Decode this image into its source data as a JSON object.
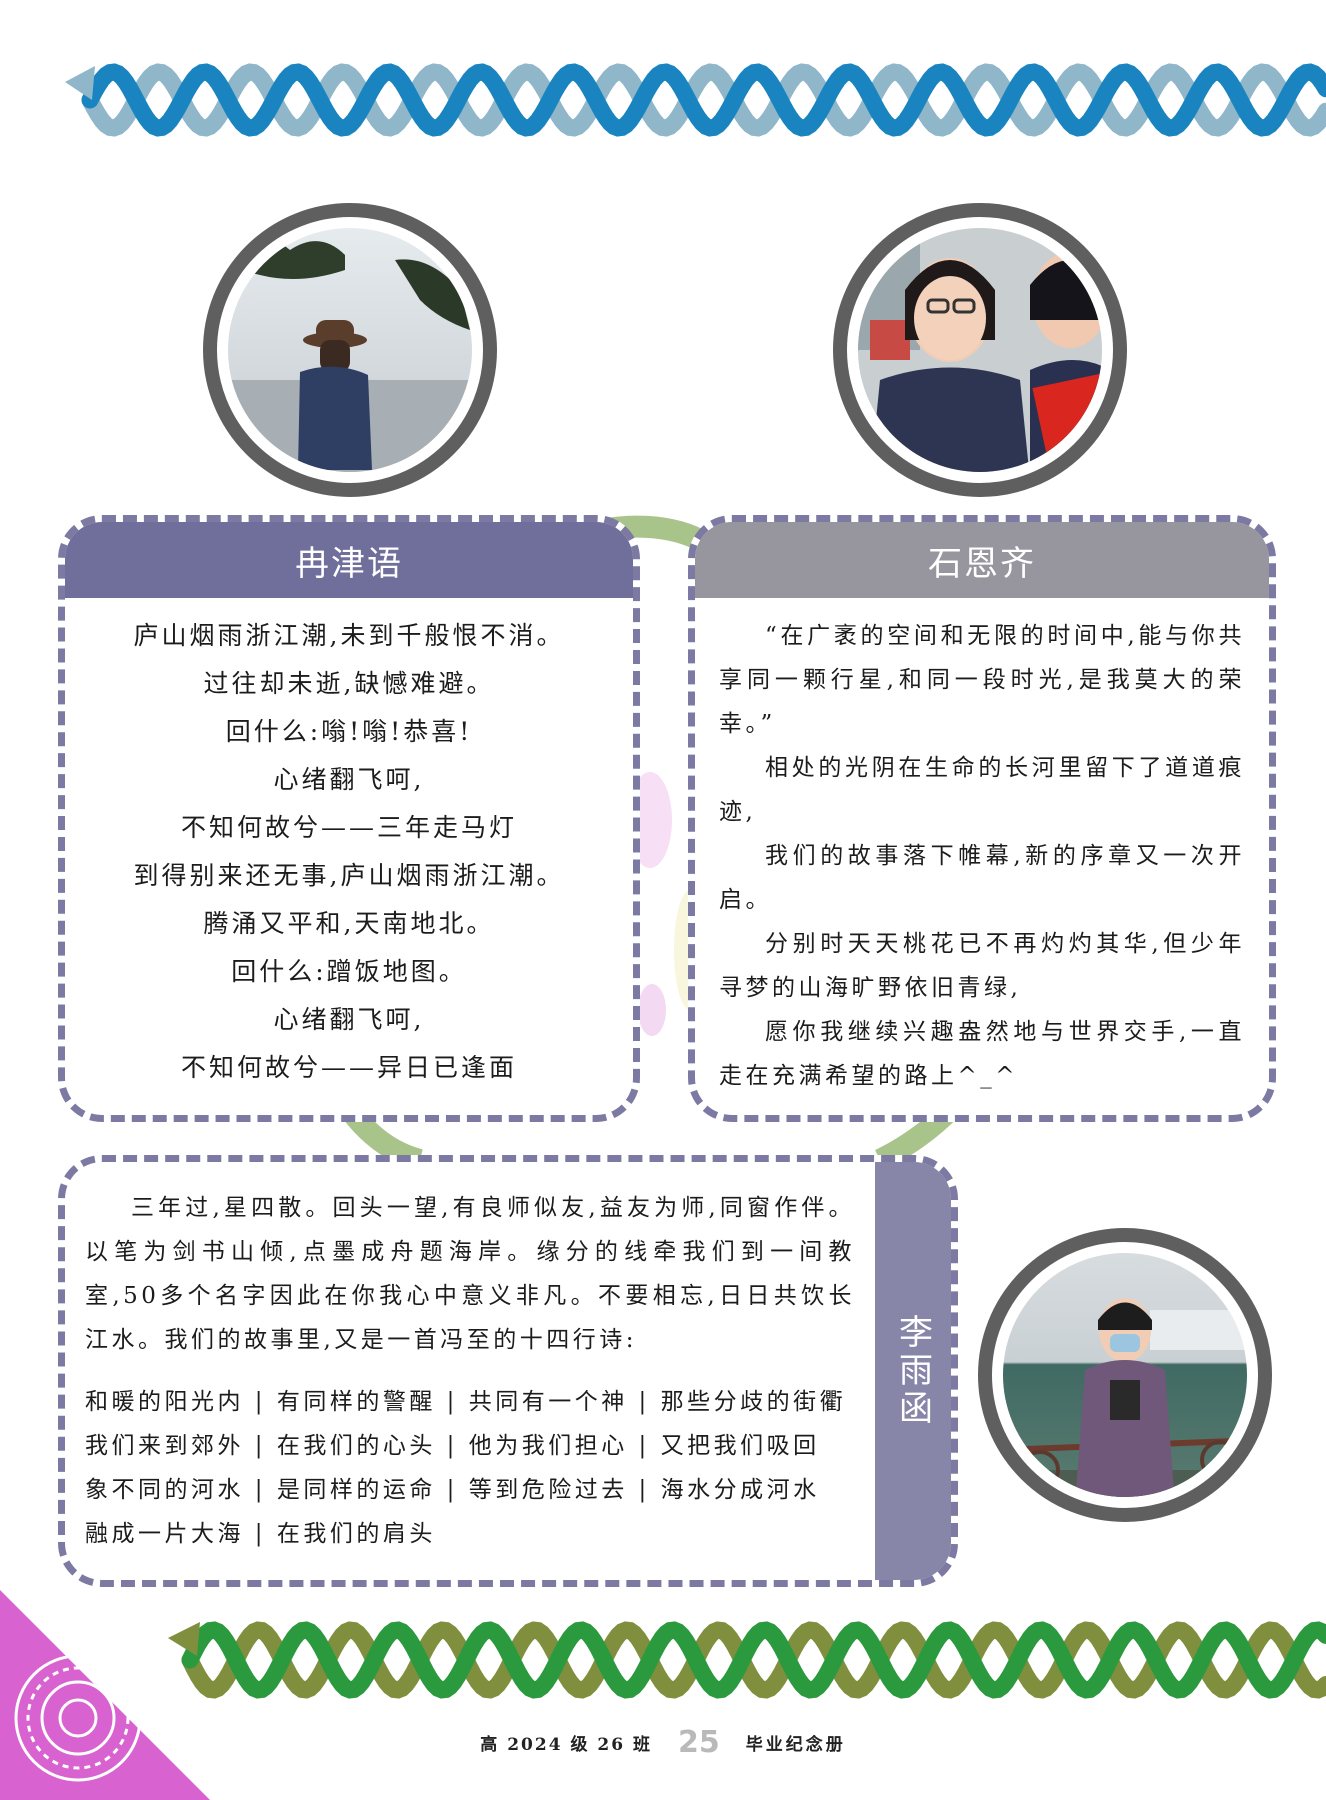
{
  "profiles": [
    {
      "name": "冉津语",
      "photo": "photo-man-with-hat-at-seaside",
      "poem_lines": [
        "庐山烟雨浙江潮,未到千般恨不消。",
        "过往却未逝,缺憾难避。",
        "回什么:嗡!嗡!恭喜!",
        "心绪翻飞呵,",
        "不知何故兮——三年走马灯",
        "到得别来还无事,庐山烟雨浙江潮。",
        "腾涌又平和,天南地北。",
        "回什么:蹭饭地图。",
        "心绪翻飞呵,",
        "不知何故兮——异日已逢面"
      ]
    },
    {
      "name": "石恩齐",
      "photo": "photo-two-smiling-students",
      "paragraphs": [
        "“在广袤的空间和无限的时间中,能与你共享同一颗行星,和同一段时光,是我莫大的荣幸。”",
        "相处的光阴在生命的长河里留下了道道痕迹,",
        "我们的故事落下帷幕,新的序章又一次开启。",
        "分别时天天桃花已不再灼灼其华,但少年寻梦的山海旷野依旧青绿,",
        "愿你我继续兴趣盎然地与世界交手,一直走在充满希望的路上^_^"
      ]
    },
    {
      "name": "李雨函",
      "photo": "photo-person-with-mask-at-riverside",
      "intro": "三年过,星四散。回头一望,有良师似友,益友为师,同窗作伴。以笔为剑书山倾,点墨成舟题海岸。缘分的线牵我们到一间教室,50多个名字因此在你我心中意义非凡。不要相忘,日日共饮长江水。我们的故事里,又是一首冯至的十四行诗:",
      "sonnet_lines": [
        "和暖的阳光内 | 有同样的警醒 | 共同有一个神 | 那些分歧的街衢",
        "我们来到郊外 | 在我们的心头 | 他为我们担心 | 又把我们吸回",
        "象不同的河水 | 是同样的运命 | 等到危险过去 | 海水分成河水",
        "融成一片大海 | 在我们的肩头"
      ]
    }
  ],
  "footer": {
    "class_label": "高 2024 级 26 班",
    "page_number": "25",
    "book_label": "毕业纪念册"
  },
  "colors": {
    "card_border": "#7c7aa2",
    "card_header": "#706e9b",
    "helix_top_dark": "#1a84c0",
    "helix_top_light": "#8fb6c9",
    "helix_bottom_dark": "#2b9a3e",
    "helix_bottom_light": "#7f8f3d",
    "corner": "#d46ccd"
  }
}
